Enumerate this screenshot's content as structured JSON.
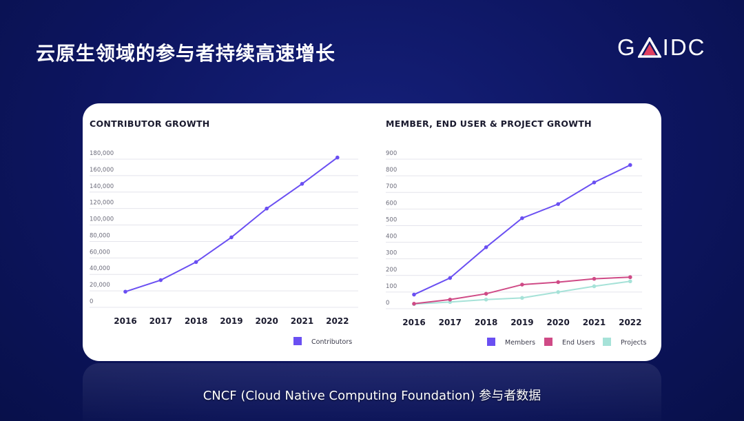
{
  "slide": {
    "title": "云原生领域的参与者持续高速增长",
    "logo_left": "G",
    "logo_right": "IDC",
    "caption": "CNCF (Cloud Native Computing Foundation) 参与者数据"
  },
  "colors": {
    "members": "#6a4ff2",
    "end_users": "#cf4a86",
    "projects": "#a6e2d8",
    "contributors": "#6a4ff2",
    "logo_accent": "#e0405f"
  },
  "chart_data": [
    {
      "type": "line",
      "title": "CONTRIBUTOR GROWTH",
      "categories": [
        "2016",
        "2017",
        "2018",
        "2019",
        "2020",
        "2021",
        "2022"
      ],
      "series": [
        {
          "name": "Contributors",
          "values": [
            14000,
            28000,
            50000,
            80000,
            115000,
            145000,
            177000
          ]
        }
      ],
      "ylim": [
        0,
        180000
      ],
      "yticks": [
        "0",
        "20,000",
        "40,000",
        "60,000",
        "80,000",
        "100,000",
        "120,000",
        "140,000",
        "160,000",
        "180,000"
      ],
      "legend": "bottom-right",
      "grid": true
    },
    {
      "type": "line",
      "title": "MEMBER, END USER & PROJECT GROWTH",
      "categories": [
        "2016",
        "2017",
        "2018",
        "2019",
        "2020",
        "2021",
        "2022"
      ],
      "series": [
        {
          "name": "Members",
          "values": [
            60,
            160,
            345,
            520,
            605,
            735,
            840
          ]
        },
        {
          "name": "End Users",
          "values": [
            5,
            30,
            65,
            120,
            135,
            155,
            165
          ]
        },
        {
          "name": "Projects",
          "values": [
            3,
            15,
            30,
            40,
            75,
            110,
            140
          ]
        }
      ],
      "ylim": [
        0,
        900
      ],
      "yticks": [
        "0",
        "100",
        "200",
        "300",
        "400",
        "500",
        "600",
        "700",
        "800",
        "900"
      ],
      "legend": "bottom-right",
      "grid": true
    }
  ]
}
